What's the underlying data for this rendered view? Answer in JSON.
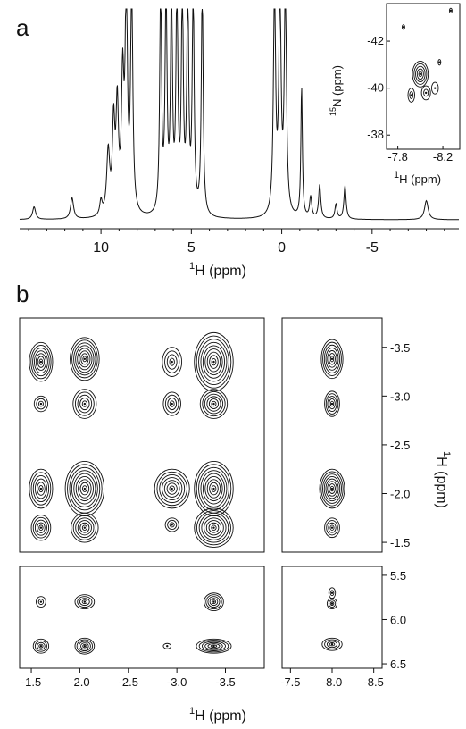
{
  "panels": {
    "a": "a",
    "b": "b"
  },
  "chart_data": [
    {
      "type": "line",
      "panel": "a",
      "xlabel_sup": "1",
      "xlabel": "H (ppm)",
      "x_ticks": [
        "10",
        "5",
        "0",
        "-5"
      ],
      "xlim": [
        14.5,
        -9.8
      ],
      "grid": false,
      "peaks": [
        {
          "x": 13.7,
          "h": 0.06,
          "w": 0.1
        },
        {
          "x": 11.6,
          "h": 0.1,
          "w": 0.1
        },
        {
          "x": 10.0,
          "h": 0.07,
          "w": 0.08
        },
        {
          "x": 9.6,
          "h": 0.3,
          "w": 0.1
        },
        {
          "x": 9.3,
          "h": 0.42,
          "w": 0.08
        },
        {
          "x": 9.1,
          "h": 0.5,
          "w": 0.08
        },
        {
          "x": 8.8,
          "h": 0.62,
          "w": 0.08
        },
        {
          "x": 8.6,
          "h": 1.1,
          "w": 0.07
        },
        {
          "x": 8.3,
          "h": 1.1,
          "w": 0.07
        },
        {
          "x": 6.7,
          "h": 1.1,
          "w": 0.06
        },
        {
          "x": 6.4,
          "h": 1.1,
          "w": 0.06
        },
        {
          "x": 6.1,
          "h": 1.1,
          "w": 0.06
        },
        {
          "x": 5.8,
          "h": 1.1,
          "w": 0.06
        },
        {
          "x": 5.5,
          "h": 1.1,
          "w": 0.06
        },
        {
          "x": 5.2,
          "h": 1.1,
          "w": 0.06
        },
        {
          "x": 4.9,
          "h": 1.1,
          "w": 0.06
        },
        {
          "x": 4.4,
          "h": 1.1,
          "w": 0.06
        },
        {
          "x": 0.4,
          "h": 1.1,
          "w": 0.07
        },
        {
          "x": 0.1,
          "h": 1.1,
          "w": 0.07
        },
        {
          "x": -0.2,
          "h": 1.1,
          "w": 0.07
        },
        {
          "x": -1.1,
          "h": 0.62,
          "w": 0.05
        },
        {
          "x": -1.6,
          "h": 0.1,
          "w": 0.07
        },
        {
          "x": -2.1,
          "h": 0.16,
          "w": 0.07
        },
        {
          "x": -3.0,
          "h": 0.07,
          "w": 0.07
        },
        {
          "x": -3.5,
          "h": 0.16,
          "w": 0.07
        },
        {
          "x": -8.0,
          "h": 0.09,
          "w": 0.12
        }
      ]
    },
    {
      "type": "contour",
      "panel": "a-inset",
      "xlabel_sup": "1",
      "xlabel": "H (ppm)",
      "ylabel_sup": "15",
      "ylabel": "N (ppm)",
      "x_ticks": [
        "-7.8",
        "-8.2"
      ],
      "y_ticks": [
        "-42",
        "-40",
        "-38"
      ],
      "xlim": [
        -7.7,
        -8.35
      ],
      "ylim": [
        -43.6,
        -37.4
      ],
      "peaks": [
        {
          "x": -8.0,
          "y": -40.6,
          "rx": 0.07,
          "ry": 0.55,
          "levels": 5
        },
        {
          "x": -8.05,
          "y": -39.8,
          "rx": 0.04,
          "ry": 0.3,
          "levels": 2
        },
        {
          "x": -7.92,
          "y": -39.7,
          "rx": 0.03,
          "ry": 0.3,
          "levels": 2
        },
        {
          "x": -8.13,
          "y": -40.0,
          "rx": 0.03,
          "ry": 0.25,
          "levels": 1
        },
        {
          "x": -7.85,
          "y": -42.6,
          "rx": 0.012,
          "ry": 0.1,
          "levels": 1
        },
        {
          "x": -8.27,
          "y": -43.3,
          "rx": 0.012,
          "ry": 0.1,
          "levels": 1
        },
        {
          "x": -8.17,
          "y": -41.1,
          "rx": 0.012,
          "ry": 0.12,
          "levels": 1
        }
      ]
    },
    {
      "type": "contour",
      "panel": "b",
      "xlabel_sup": "1",
      "xlabel": "H (ppm)",
      "ylabel_sup": "1",
      "ylabel": "H (ppm)",
      "subplots": [
        {
          "id": "b-top-left",
          "xlim": [
            -1.38,
            -3.9
          ],
          "ylim": [
            -3.8,
            -1.4
          ],
          "x_ticks": [],
          "y_ticks": [],
          "peaks": [
            {
              "x": -1.6,
              "y": -3.35,
              "rx": 0.12,
              "ry": 0.2,
              "levels": 7
            },
            {
              "x": -2.05,
              "y": -3.38,
              "rx": 0.15,
              "ry": 0.22,
              "levels": 8
            },
            {
              "x": -2.05,
              "y": -2.92,
              "rx": 0.12,
              "ry": 0.15,
              "levels": 5
            },
            {
              "x": -1.6,
              "y": -2.92,
              "rx": 0.07,
              "ry": 0.08,
              "levels": 3
            },
            {
              "x": -2.95,
              "y": -3.35,
              "rx": 0.1,
              "ry": 0.15,
              "levels": 4
            },
            {
              "x": -3.38,
              "y": -3.35,
              "rx": 0.2,
              "ry": 0.3,
              "levels": 9
            },
            {
              "x": -2.95,
              "y": -2.92,
              "rx": 0.09,
              "ry": 0.12,
              "levels": 4
            },
            {
              "x": -3.38,
              "y": -2.92,
              "rx": 0.14,
              "ry": 0.15,
              "levels": 6
            },
            {
              "x": -1.6,
              "y": -2.05,
              "rx": 0.12,
              "ry": 0.2,
              "levels": 6
            },
            {
              "x": -2.05,
              "y": -2.05,
              "rx": 0.2,
              "ry": 0.28,
              "levels": 9
            },
            {
              "x": -2.95,
              "y": -2.05,
              "rx": 0.18,
              "ry": 0.2,
              "levels": 7
            },
            {
              "x": -3.38,
              "y": -2.05,
              "rx": 0.2,
              "ry": 0.28,
              "levels": 9
            },
            {
              "x": -1.6,
              "y": -1.65,
              "rx": 0.1,
              "ry": 0.13,
              "levels": 5
            },
            {
              "x": -2.05,
              "y": -1.65,
              "rx": 0.14,
              "ry": 0.15,
              "levels": 6
            },
            {
              "x": -2.95,
              "y": -1.68,
              "rx": 0.07,
              "ry": 0.07,
              "levels": 3
            },
            {
              "x": -3.38,
              "y": -1.65,
              "rx": 0.2,
              "ry": 0.2,
              "levels": 8
            }
          ]
        },
        {
          "id": "b-top-right",
          "xlim": [
            -7.4,
            -8.6
          ],
          "ylim": [
            -3.8,
            -1.4
          ],
          "x_ticks": [],
          "y_ticks": [
            "-3.5",
            "-3.0",
            "-2.5",
            "-2.0",
            "-1.5"
          ],
          "peaks": [
            {
              "x": -8.0,
              "y": -3.38,
              "rx": 0.13,
              "ry": 0.2,
              "levels": 7
            },
            {
              "x": -8.0,
              "y": -2.92,
              "rx": 0.09,
              "ry": 0.13,
              "levels": 5
            },
            {
              "x": -8.0,
              "y": -2.05,
              "rx": 0.15,
              "ry": 0.2,
              "levels": 8
            },
            {
              "x": -8.0,
              "y": -1.65,
              "rx": 0.09,
              "ry": 0.1,
              "levels": 4
            }
          ]
        },
        {
          "id": "b-bottom-left",
          "xlim": [
            -1.38,
            -3.9
          ],
          "ylim": [
            5.4,
            6.55
          ],
          "x_ticks": [
            "-1.5",
            "-2.0",
            "-2.5",
            "-3.0",
            "-3.5"
          ],
          "y_ticks": [],
          "peaks": [
            {
              "x": -1.6,
              "y": 5.8,
              "rx": 0.05,
              "ry": 0.06,
              "levels": 2
            },
            {
              "x": -2.05,
              "y": 5.8,
              "rx": 0.1,
              "ry": 0.08,
              "levels": 4
            },
            {
              "x": -3.38,
              "y": 5.8,
              "rx": 0.1,
              "ry": 0.1,
              "levels": 5
            },
            {
              "x": -1.6,
              "y": 6.3,
              "rx": 0.08,
              "ry": 0.08,
              "levels": 4
            },
            {
              "x": -2.05,
              "y": 6.3,
              "rx": 0.1,
              "ry": 0.09,
              "levels": 5
            },
            {
              "x": -2.9,
              "y": 6.3,
              "rx": 0.04,
              "ry": 0.03,
              "levels": 1
            },
            {
              "x": -3.38,
              "y": 6.3,
              "rx": 0.18,
              "ry": 0.08,
              "levels": 6
            }
          ]
        },
        {
          "id": "b-bottom-right",
          "xlim": [
            -7.4,
            -8.6
          ],
          "ylim": [
            5.4,
            6.55
          ],
          "x_ticks": [
            "-7.5",
            "-8.0",
            "-8.5"
          ],
          "y_ticks": [
            "5.5",
            "6.0",
            "6.5"
          ],
          "peaks": [
            {
              "x": -8.0,
              "y": 5.7,
              "rx": 0.04,
              "ry": 0.06,
              "levels": 2
            },
            {
              "x": -8.0,
              "y": 5.82,
              "rx": 0.06,
              "ry": 0.06,
              "levels": 3
            },
            {
              "x": -8.0,
              "y": 6.28,
              "rx": 0.12,
              "ry": 0.07,
              "levels": 4
            }
          ]
        }
      ]
    }
  ]
}
